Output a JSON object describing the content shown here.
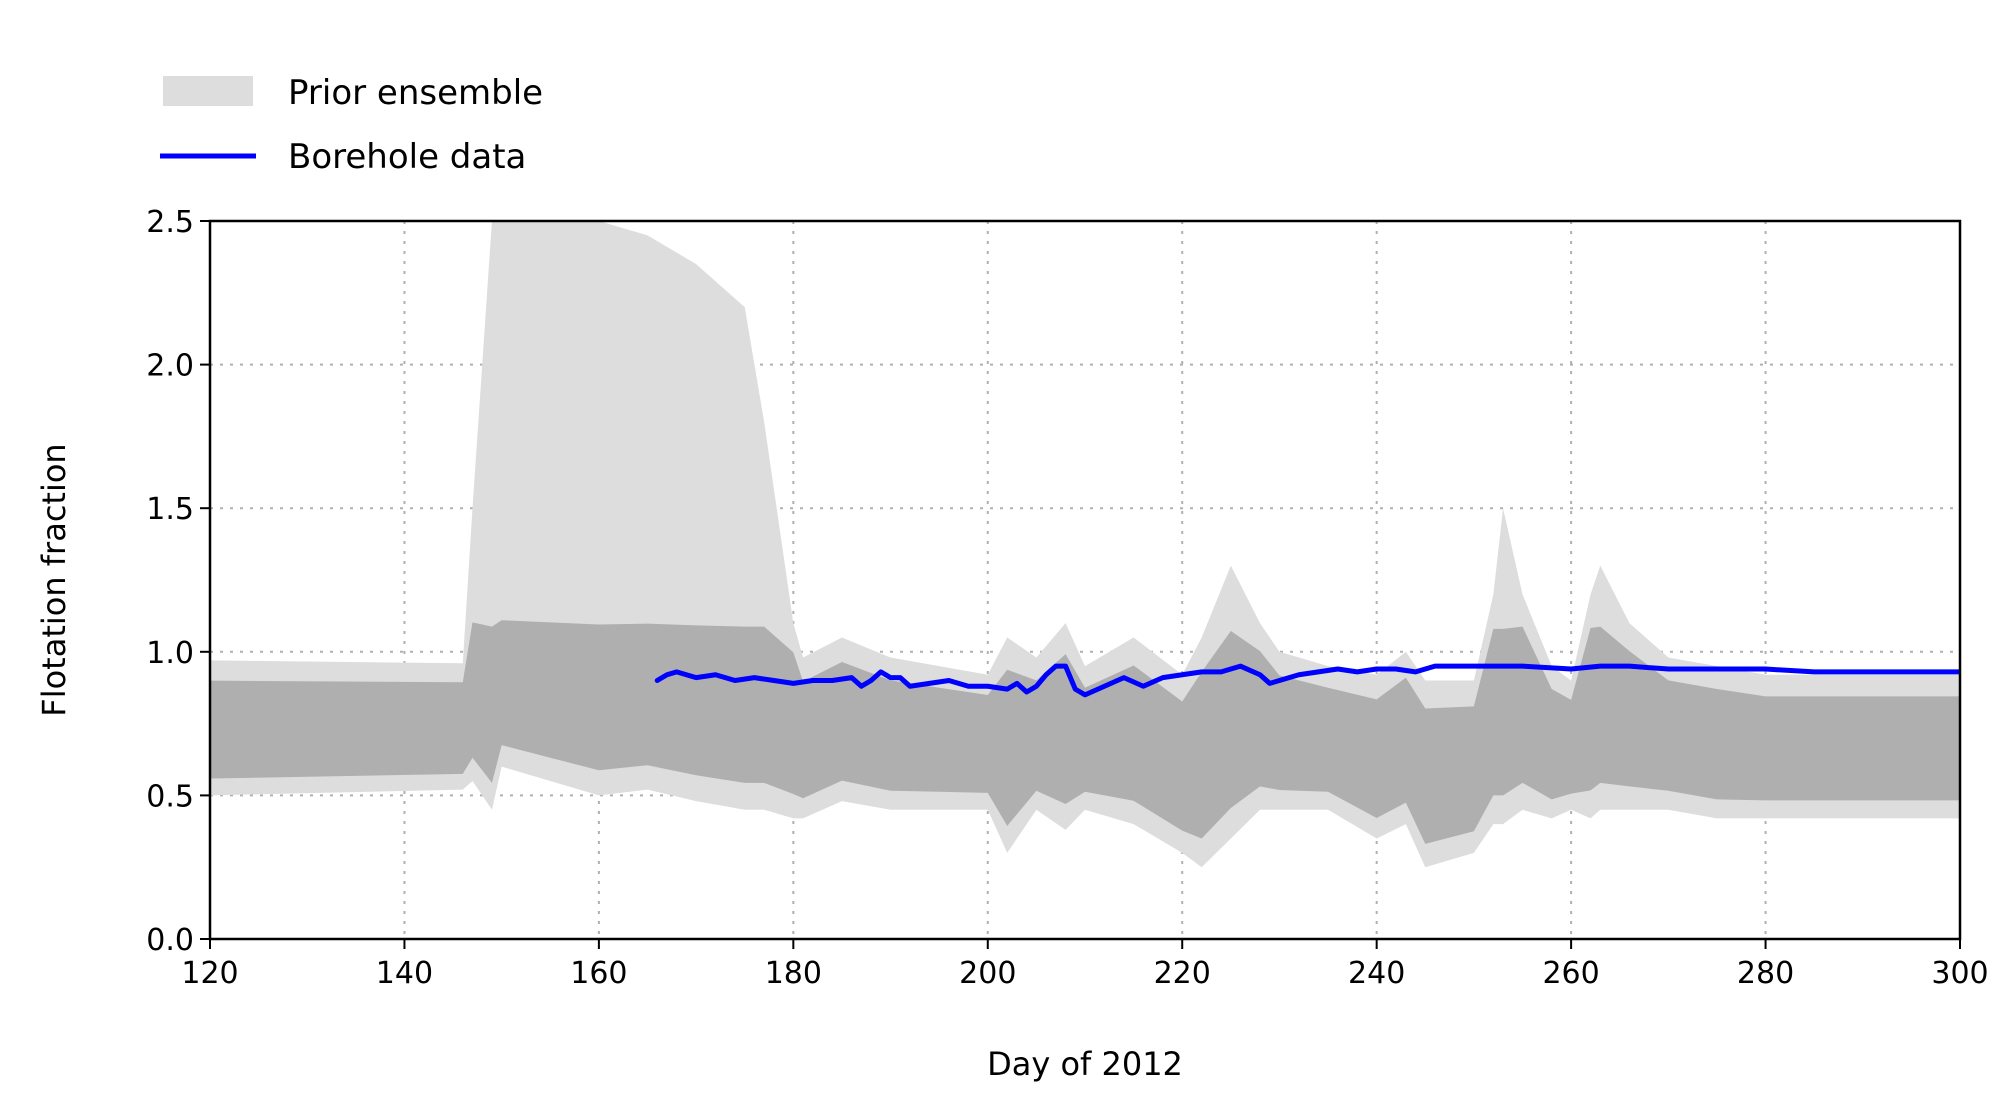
{
  "chart_data": {
    "type": "line",
    "title": "",
    "xlabel": "Day of 2012",
    "ylabel": "Flotation fraction",
    "xlim": [
      120,
      300
    ],
    "ylim": [
      0.0,
      2.5
    ],
    "xticks": [
      120,
      140,
      160,
      180,
      200,
      220,
      240,
      260,
      280,
      300
    ],
    "xtick_labels": [
      "120",
      "140",
      "160",
      "180",
      "200",
      "220",
      "240",
      "260",
      "280",
      "300"
    ],
    "yticks": [
      0.0,
      0.5,
      1.0,
      1.5,
      2.0,
      2.5
    ],
    "ytick_labels": [
      "0.0",
      "0.5",
      "1.0",
      "1.5",
      "2.0",
      "2.5"
    ],
    "grid": true,
    "legend_position": "top-left, above plot",
    "colors": {
      "ensemble_light": "#dddddd",
      "ensemble_dark": "#888888",
      "borehole": "#0000ff",
      "grid": "#b0b0b0"
    },
    "series": [
      {
        "name": "Prior ensemble",
        "style": "shaded band",
        "x": [
          120,
          146,
          147,
          149,
          150,
          155,
          160,
          165,
          170,
          175,
          177,
          180,
          181,
          185,
          190,
          195,
          200,
          202,
          205,
          208,
          210,
          215,
          220,
          222,
          225,
          228,
          230,
          235,
          240,
          243,
          245,
          250,
          252,
          253,
          255,
          258,
          260,
          262,
          263,
          266,
          270,
          275,
          280,
          290,
          300
        ],
        "upper": [
          0.97,
          0.96,
          1.5,
          2.5,
          2.5,
          2.5,
          2.5,
          2.45,
          2.35,
          2.2,
          1.8,
          1.1,
          0.98,
          1.05,
          0.98,
          0.95,
          0.92,
          1.05,
          0.98,
          1.1,
          0.95,
          1.05,
          0.92,
          1.05,
          1.3,
          1.1,
          1.0,
          0.95,
          0.92,
          1.0,
          0.9,
          0.9,
          1.2,
          1.5,
          1.2,
          0.95,
          0.9,
          1.2,
          1.3,
          1.1,
          0.98,
          0.95,
          0.92,
          0.92,
          0.92
        ],
        "lower": [
          0.5,
          0.52,
          0.55,
          0.45,
          0.6,
          0.55,
          0.5,
          0.52,
          0.48,
          0.45,
          0.45,
          0.42,
          0.42,
          0.48,
          0.45,
          0.45,
          0.45,
          0.3,
          0.45,
          0.38,
          0.45,
          0.4,
          0.3,
          0.25,
          0.35,
          0.45,
          0.45,
          0.45,
          0.35,
          0.4,
          0.25,
          0.3,
          0.4,
          0.4,
          0.45,
          0.42,
          0.45,
          0.42,
          0.45,
          0.45,
          0.45,
          0.42,
          0.42,
          0.42,
          0.42
        ]
      },
      {
        "name": "Borehole data",
        "style": "line",
        "x": [
          166,
          167,
          168,
          170,
          172,
          174,
          176,
          178,
          180,
          182,
          184,
          186,
          187,
          188,
          189,
          190,
          191,
          192,
          194,
          196,
          198,
          200,
          202,
          203,
          204,
          205,
          206,
          207,
          208,
          209,
          210,
          212,
          214,
          216,
          218,
          220,
          222,
          224,
          226,
          228,
          229,
          230,
          232,
          234,
          236,
          238,
          240,
          242,
          244,
          246,
          250,
          255,
          260,
          263,
          266,
          270,
          275,
          280,
          285,
          290,
          295,
          300
        ],
        "y": [
          0.9,
          0.92,
          0.93,
          0.91,
          0.92,
          0.9,
          0.91,
          0.9,
          0.89,
          0.9,
          0.9,
          0.91,
          0.88,
          0.9,
          0.93,
          0.91,
          0.91,
          0.88,
          0.89,
          0.9,
          0.88,
          0.88,
          0.87,
          0.89,
          0.86,
          0.88,
          0.92,
          0.95,
          0.95,
          0.87,
          0.85,
          0.88,
          0.91,
          0.88,
          0.91,
          0.92,
          0.93,
          0.93,
          0.95,
          0.92,
          0.89,
          0.9,
          0.92,
          0.93,
          0.94,
          0.93,
          0.94,
          0.94,
          0.93,
          0.95,
          0.95,
          0.95,
          0.94,
          0.95,
          0.95,
          0.94,
          0.94,
          0.94,
          0.93,
          0.93,
          0.93,
          0.93
        ]
      }
    ]
  }
}
